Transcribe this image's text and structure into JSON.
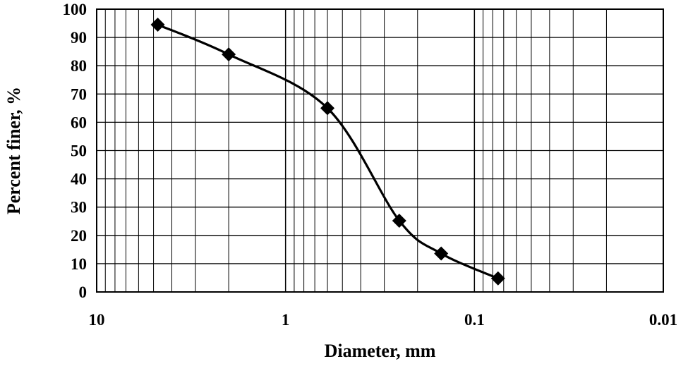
{
  "chart_data": {
    "type": "line",
    "title": "",
    "xlabel": "Diameter, mm",
    "ylabel": "Percent finer, %",
    "x_scale": "log",
    "x_reversed": true,
    "xlim": [
      10,
      0.01
    ],
    "ylim": [
      0,
      100
    ],
    "grid": true,
    "legend": "none",
    "x_ticks": [
      {
        "value": 10,
        "label": "10"
      },
      {
        "value": 1,
        "label": "1"
      },
      {
        "value": 0.1,
        "label": "0.1"
      },
      {
        "value": 0.01,
        "label": "0.01"
      }
    ],
    "y_ticks": [
      {
        "value": 0,
        "label": "0"
      },
      {
        "value": 10,
        "label": "10"
      },
      {
        "value": 20,
        "label": "20"
      },
      {
        "value": 30,
        "label": "30"
      },
      {
        "value": 40,
        "label": "40"
      },
      {
        "value": 50,
        "label": "50"
      },
      {
        "value": 60,
        "label": "60"
      },
      {
        "value": 70,
        "label": "70"
      },
      {
        "value": 80,
        "label": "80"
      },
      {
        "value": 90,
        "label": "90"
      },
      {
        "value": 100,
        "label": "100"
      }
    ],
    "series": [
      {
        "marker": "diamond",
        "color": "#000000",
        "x": [
          4.75,
          2.0,
          0.6,
          0.25,
          0.15,
          0.075
        ],
        "y": [
          94.5,
          84,
          65,
          25.2,
          13.6,
          4.8
        ]
      }
    ]
  }
}
